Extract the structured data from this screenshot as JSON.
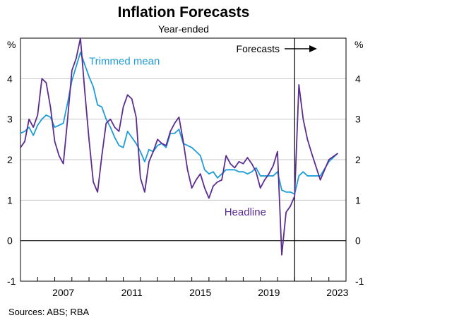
{
  "chart_data": {
    "type": "line",
    "title": "Inflation Forecasts",
    "subtitle": "Year-ended",
    "y_unit_left": "%",
    "y_unit_right": "%",
    "ylim": [
      -1,
      5
    ],
    "yticks": [
      -1,
      0,
      1,
      2,
      3,
      4
    ],
    "xlim": [
      2005.0,
      2024.0
    ],
    "xticks": [
      2007,
      2011,
      2015,
      2019,
      2023
    ],
    "grid": true,
    "forecast_start": 2021.0,
    "forecast_label": "Forecasts",
    "source_note": "Sources: ABS; RBA",
    "series": [
      {
        "name": "Trimmed mean",
        "color": "#1e9dd8",
        "label_anchor": [
          2009.0,
          4.35
        ],
        "x": [
          2005.0,
          2005.25,
          2005.5,
          2005.75,
          2006.0,
          2006.25,
          2006.5,
          2006.75,
          2007.0,
          2007.25,
          2007.5,
          2007.75,
          2008.0,
          2008.25,
          2008.5,
          2008.75,
          2009.0,
          2009.25,
          2009.5,
          2009.75,
          2010.0,
          2010.25,
          2010.5,
          2010.75,
          2011.0,
          2011.25,
          2011.5,
          2011.75,
          2012.0,
          2012.25,
          2012.5,
          2012.75,
          2013.0,
          2013.25,
          2013.5,
          2013.75,
          2014.0,
          2014.25,
          2014.5,
          2014.75,
          2015.0,
          2015.25,
          2015.5,
          2015.75,
          2016.0,
          2016.25,
          2016.5,
          2016.75,
          2017.0,
          2017.25,
          2017.5,
          2017.75,
          2018.0,
          2018.25,
          2018.5,
          2018.75,
          2019.0,
          2019.25,
          2019.5,
          2019.75,
          2020.0,
          2020.25,
          2020.5,
          2020.75,
          2021.0,
          2021.25,
          2021.5,
          2021.75,
          2022.0,
          2022.5,
          2023.0,
          2023.5
        ],
        "y": [
          2.65,
          2.7,
          2.8,
          2.6,
          2.85,
          3.0,
          3.1,
          3.05,
          2.8,
          2.85,
          2.9,
          3.4,
          3.95,
          4.3,
          4.65,
          4.35,
          4.05,
          3.8,
          3.35,
          3.3,
          3.0,
          2.8,
          2.55,
          2.35,
          2.3,
          2.7,
          2.55,
          2.4,
          2.2,
          1.95,
          2.25,
          2.2,
          2.35,
          2.4,
          2.3,
          2.65,
          2.65,
          2.75,
          2.4,
          2.35,
          2.3,
          2.2,
          2.1,
          1.75,
          1.65,
          1.7,
          1.55,
          1.65,
          1.75,
          1.75,
          1.75,
          1.7,
          1.7,
          1.65,
          1.7,
          1.8,
          1.6,
          1.6,
          1.6,
          1.6,
          1.7,
          1.25,
          1.2,
          1.2,
          1.15,
          1.6,
          1.7,
          1.6,
          1.6,
          1.6,
          1.95,
          2.15
        ]
      },
      {
        "name": "Headline",
        "color": "#5b2d90",
        "label_anchor": [
          2016.9,
          0.62
        ],
        "x": [
          2005.0,
          2005.25,
          2005.5,
          2005.75,
          2006.0,
          2006.25,
          2006.5,
          2006.75,
          2007.0,
          2007.25,
          2007.5,
          2007.75,
          2008.0,
          2008.25,
          2008.5,
          2008.75,
          2009.0,
          2009.25,
          2009.5,
          2009.75,
          2010.0,
          2010.25,
          2010.5,
          2010.75,
          2011.0,
          2011.25,
          2011.5,
          2011.75,
          2012.0,
          2012.25,
          2012.5,
          2012.75,
          2013.0,
          2013.25,
          2013.5,
          2013.75,
          2014.0,
          2014.25,
          2014.5,
          2014.75,
          2015.0,
          2015.25,
          2015.5,
          2015.75,
          2016.0,
          2016.25,
          2016.5,
          2016.75,
          2017.0,
          2017.25,
          2017.5,
          2017.75,
          2018.0,
          2018.25,
          2018.5,
          2018.75,
          2019.0,
          2019.25,
          2019.5,
          2019.75,
          2020.0,
          2020.25,
          2020.5,
          2020.75,
          2021.0,
          2021.25,
          2021.5,
          2021.75,
          2022.0,
          2022.5,
          2023.0,
          2023.5
        ],
        "y": [
          2.3,
          2.45,
          3.0,
          2.8,
          3.1,
          4.0,
          3.9,
          3.3,
          2.45,
          2.1,
          1.9,
          3.0,
          4.2,
          4.5,
          5.0,
          3.7,
          2.5,
          1.45,
          1.2,
          2.1,
          2.9,
          3.0,
          2.8,
          2.7,
          3.3,
          3.6,
          3.5,
          3.05,
          1.55,
          1.2,
          1.95,
          2.2,
          2.5,
          2.4,
          2.35,
          2.7,
          2.9,
          3.05,
          2.45,
          1.75,
          1.3,
          1.5,
          1.65,
          1.3,
          1.05,
          1.35,
          1.45,
          1.5,
          2.1,
          1.9,
          1.8,
          1.95,
          1.9,
          2.05,
          1.9,
          1.7,
          1.3,
          1.5,
          1.65,
          1.85,
          2.2,
          -0.35,
          0.7,
          0.85,
          1.1,
          3.85,
          3.0,
          2.5,
          2.15,
          1.5,
          2.0,
          2.15
        ]
      }
    ]
  }
}
